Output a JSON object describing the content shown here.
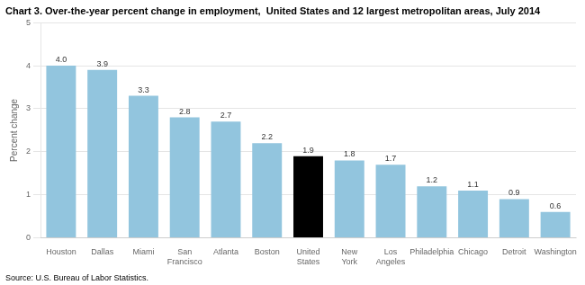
{
  "chart_data": {
    "type": "bar",
    "title": "Chart 3. Over-the-year percent change in employment,  United States and 12 largest metropolitan areas, July 2014",
    "y_label": "Percent change",
    "annotations": [
      "Source: U.S. Bureau of Labor Statistics."
    ],
    "categories": [
      "Houston",
      "Dallas",
      "Miami",
      "San\nFrancisco",
      "Atlanta",
      "Boston",
      "United\nStates",
      "New\nYork",
      "Los\nAngeles",
      "Philadelphia",
      "Chicago",
      "Detroit",
      "Washington"
    ],
    "values": [
      4.0,
      3.9,
      3.3,
      2.8,
      2.7,
      2.2,
      1.9,
      1.8,
      1.7,
      1.2,
      1.1,
      0.9,
      0.6
    ],
    "value_labels": [
      "4.0",
      "3.9",
      "3.3",
      "2.8",
      "2.7",
      "2.2",
      "1.9",
      "1.8",
      "1.7",
      "1.2",
      "1.1",
      "0.9",
      "0.6"
    ],
    "colors": [
      "#92C5DE",
      "#92C5DE",
      "#92C5DE",
      "#92C5DE",
      "#92C5DE",
      "#92C5DE",
      "#000000",
      "#92C5DE",
      "#92C5DE",
      "#92C5DE",
      "#92C5DE",
      "#92C5DE",
      "#92C5DE"
    ],
    "ylim": [
      0,
      5
    ],
    "yticks": [
      0,
      1,
      2,
      3,
      4,
      5
    ],
    "grid": true,
    "data_labels": true
  }
}
